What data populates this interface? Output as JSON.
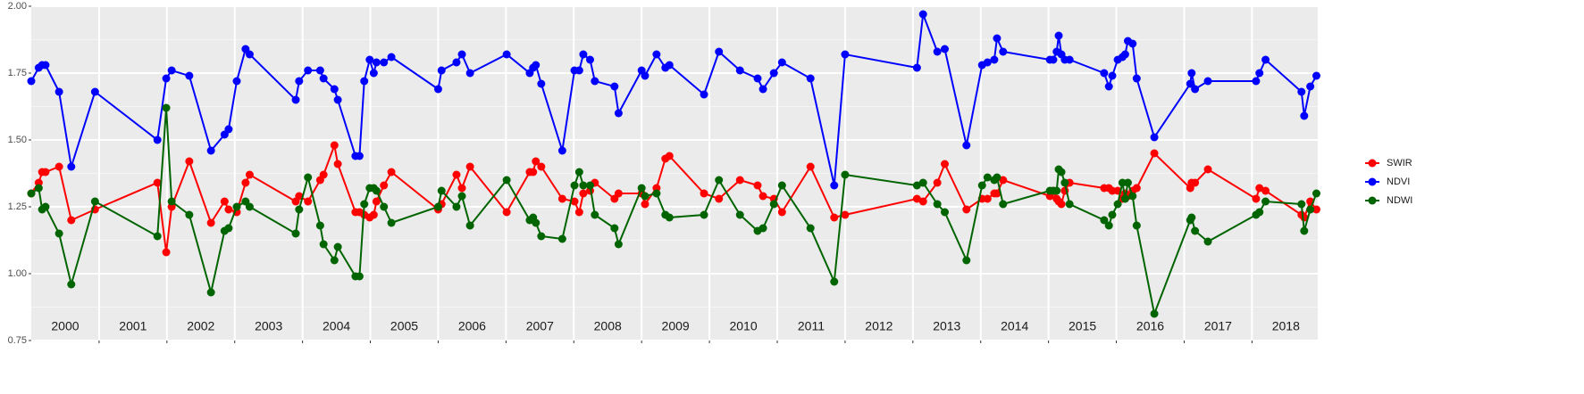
{
  "chart_data": {
    "type": "line",
    "x": [
      2000.0,
      2000.11,
      2000.16,
      2000.21,
      2000.41,
      2000.59,
      2000.94,
      2001.86,
      2001.99,
      2002.07,
      2002.33,
      2002.65,
      2002.85,
      2002.91,
      2003.03,
      2003.16,
      2003.22,
      2003.9,
      2003.95,
      2004.08,
      2004.26,
      2004.31,
      2004.47,
      2004.52,
      2004.78,
      2004.84,
      2004.91,
      2004.99,
      2005.05,
      2005.09,
      2005.2,
      2005.31,
      2006.0,
      2006.05,
      2006.27,
      2006.35,
      2006.47,
      2007.01,
      2007.35,
      2007.4,
      2007.44,
      2007.52,
      2007.83,
      2008.01,
      2008.08,
      2008.14,
      2008.24,
      2008.31,
      2008.6,
      2008.66,
      2009.0,
      2009.05,
      2009.22,
      2009.35,
      2009.41,
      2009.92,
      2010.14,
      2010.45,
      2010.71,
      2010.79,
      2010.95,
      2011.07,
      2011.49,
      2011.84,
      2012.0,
      2013.06,
      2013.15,
      2013.36,
      2013.47,
      2013.79,
      2014.02,
      2014.1,
      2014.2,
      2014.24,
      2014.33,
      2015.02,
      2015.07,
      2015.12,
      2015.15,
      2015.19,
      2015.24,
      2015.31,
      2015.82,
      2015.89,
      2015.94,
      2016.02,
      2016.09,
      2016.13,
      2016.17,
      2016.24,
      2016.3,
      2016.56,
      2017.09,
      2017.11,
      2017.16,
      2017.35,
      2018.06,
      2018.11,
      2018.2,
      2018.73,
      2018.77,
      2018.86,
      2018.95
    ],
    "series": [
      {
        "name": "SWIR",
        "color": "#ff0000",
        "values": [
          1.3,
          1.34,
          1.38,
          1.38,
          1.4,
          1.2,
          1.24,
          1.34,
          1.08,
          1.25,
          1.42,
          1.19,
          1.27,
          1.24,
          1.23,
          1.34,
          1.37,
          1.27,
          1.29,
          1.27,
          1.35,
          1.37,
          1.48,
          1.41,
          1.23,
          1.23,
          1.22,
          1.21,
          1.22,
          1.27,
          1.33,
          1.38,
          1.24,
          1.26,
          1.37,
          1.32,
          1.4,
          1.23,
          1.38,
          1.38,
          1.42,
          1.4,
          1.28,
          1.27,
          1.23,
          1.3,
          1.31,
          1.34,
          1.28,
          1.3,
          1.3,
          1.26,
          1.32,
          1.43,
          1.44,
          1.3,
          1.28,
          1.35,
          1.33,
          1.29,
          1.28,
          1.23,
          1.4,
          1.21,
          1.22,
          1.28,
          1.27,
          1.34,
          1.41,
          1.24,
          1.28,
          1.28,
          1.3,
          1.3,
          1.35,
          1.29,
          1.31,
          1.28,
          1.27,
          1.26,
          1.31,
          1.34,
          1.32,
          1.32,
          1.31,
          1.31,
          1.28,
          1.3,
          1.29,
          1.31,
          1.32,
          1.45,
          1.32,
          1.34,
          1.34,
          1.39,
          1.28,
          1.32,
          1.31,
          1.22,
          1.21,
          1.27,
          1.24
        ]
      },
      {
        "name": "NDVI",
        "color": "#0000ff",
        "values": [
          1.72,
          1.77,
          1.78,
          1.78,
          1.68,
          1.4,
          1.68,
          1.5,
          1.73,
          1.76,
          1.74,
          1.46,
          1.52,
          1.54,
          1.72,
          1.84,
          1.82,
          1.65,
          1.72,
          1.76,
          1.76,
          1.73,
          1.69,
          1.65,
          1.44,
          1.44,
          1.72,
          1.8,
          1.75,
          1.79,
          1.79,
          1.81,
          1.69,
          1.76,
          1.79,
          1.82,
          1.75,
          1.82,
          1.75,
          1.77,
          1.78,
          1.71,
          1.46,
          1.76,
          1.76,
          1.82,
          1.8,
          1.72,
          1.7,
          1.6,
          1.76,
          1.74,
          1.82,
          1.77,
          1.78,
          1.67,
          1.83,
          1.76,
          1.73,
          1.69,
          1.75,
          1.79,
          1.73,
          1.33,
          1.82,
          1.77,
          1.97,
          1.83,
          1.84,
          1.48,
          1.78,
          1.79,
          1.8,
          1.88,
          1.83,
          1.8,
          1.8,
          1.83,
          1.89,
          1.82,
          1.8,
          1.8,
          1.75,
          1.7,
          1.74,
          1.8,
          1.81,
          1.82,
          1.87,
          1.86,
          1.73,
          1.51,
          1.71,
          1.75,
          1.69,
          1.72,
          1.72,
          1.75,
          1.8,
          1.68,
          1.59,
          1.7,
          1.74
        ]
      },
      {
        "name": "NDWI",
        "color": "#006400",
        "values": [
          1.3,
          1.32,
          1.24,
          1.25,
          1.15,
          0.96,
          1.27,
          1.14,
          1.62,
          1.27,
          1.22,
          0.93,
          1.16,
          1.17,
          1.25,
          1.27,
          1.25,
          1.15,
          1.24,
          1.36,
          1.18,
          1.11,
          1.05,
          1.1,
          0.99,
          0.99,
          1.26,
          1.32,
          1.32,
          1.31,
          1.25,
          1.19,
          1.25,
          1.31,
          1.25,
          1.29,
          1.18,
          1.35,
          1.2,
          1.21,
          1.19,
          1.14,
          1.13,
          1.33,
          1.38,
          1.33,
          1.33,
          1.22,
          1.17,
          1.11,
          1.32,
          1.29,
          1.3,
          1.22,
          1.21,
          1.22,
          1.35,
          1.22,
          1.16,
          1.17,
          1.26,
          1.33,
          1.17,
          0.97,
          1.37,
          1.33,
          1.34,
          1.26,
          1.23,
          1.05,
          1.33,
          1.36,
          1.35,
          1.36,
          1.26,
          1.31,
          1.31,
          1.31,
          1.39,
          1.38,
          1.34,
          1.26,
          1.2,
          1.18,
          1.22,
          1.26,
          1.34,
          1.28,
          1.34,
          1.29,
          1.18,
          0.85,
          1.2,
          1.21,
          1.16,
          1.12,
          1.22,
          1.23,
          1.27,
          1.26,
          1.16,
          1.24,
          1.3
        ]
      }
    ],
    "xlim": [
      2000.0,
      2018.97
    ],
    "xticks": [
      2001,
      2002,
      2003,
      2004,
      2005,
      2006,
      2007,
      2008,
      2009,
      2010,
      2011,
      2012,
      2013,
      2014,
      2015,
      2016,
      2017,
      2018
    ],
    "year_labels": [
      2000,
      2001,
      2002,
      2003,
      2004,
      2005,
      2006,
      2007,
      2008,
      2009,
      2010,
      2011,
      2012,
      2013,
      2014,
      2015,
      2016,
      2017,
      2018
    ],
    "ylim": [
      0.75,
      2.0
    ],
    "yticks": [
      {
        "value": 0.75,
        "label": "0.75"
      },
      {
        "value": 1.0,
        "label": "1.00"
      },
      {
        "value": 1.25,
        "label": "1.25"
      },
      {
        "value": 1.5,
        "label": "1.50"
      },
      {
        "value": 1.75,
        "label": "1.75"
      },
      {
        "value": 2.0,
        "label": "2.00"
      }
    ],
    "grid": true,
    "legend": "right"
  }
}
